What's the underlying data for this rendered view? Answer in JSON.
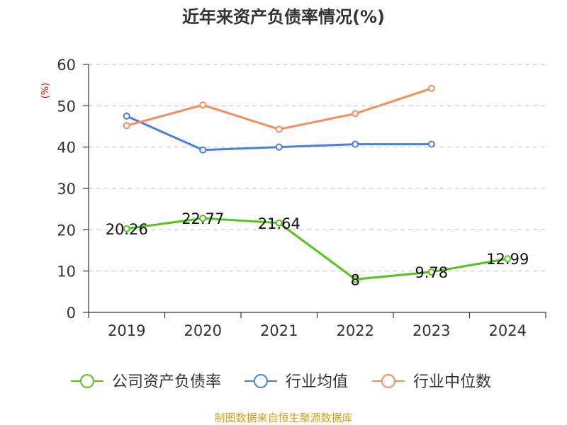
{
  "chart_data": {
    "type": "line",
    "title": "近年来资产负债率情况(%)",
    "ylabel": "(%)",
    "xlabel": "",
    "categories": [
      "2019",
      "2020",
      "2021",
      "2022",
      "2023",
      "2024"
    ],
    "ylim": [
      0,
      60
    ],
    "yticks": [
      0,
      10,
      20,
      30,
      40,
      50,
      60
    ],
    "grid": true,
    "legend_position": "bottom",
    "series": [
      {
        "name": "公司资产负债率",
        "color": "#52c41a",
        "values": [
          20.26,
          22.77,
          21.64,
          8,
          9.78,
          12.99
        ],
        "data_labels": [
          "20.26",
          "22.77",
          "21.64",
          "8",
          "9.78",
          "12.99"
        ]
      },
      {
        "name": "行业均值",
        "color": "#4a7fdc",
        "values": [
          47.5,
          39.3,
          40.0,
          40.7,
          40.7,
          null
        ]
      },
      {
        "name": "行业中位数",
        "color": "#f58c5a",
        "values": [
          45.2,
          50.2,
          44.3,
          48.1,
          54.2,
          null
        ]
      }
    ]
  },
  "footer": {
    "source": "制图数据来自恒生聚源数据库"
  },
  "colors": {
    "axis": "#333333",
    "grid": "#cccccc",
    "ylabel": "#d00000",
    "source": "#d4a017"
  }
}
